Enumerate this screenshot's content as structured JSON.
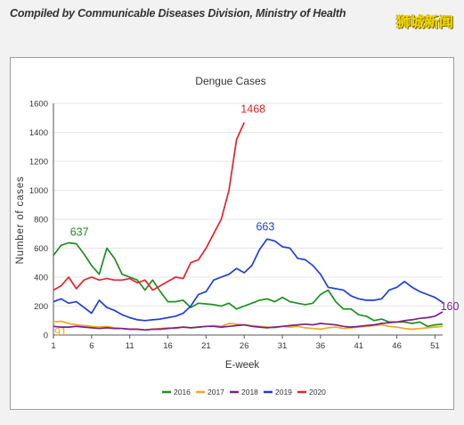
{
  "header": {
    "source_note": "Compiled by Communicable Diseases Division, Ministry of Health",
    "logo_text": "狮城新闻"
  },
  "colors": {
    "2016": "#1e8f1e",
    "2017": "#f5a623",
    "2018": "#7b1f8a",
    "2019": "#1f3fd6",
    "2020": "#e8222a",
    "grid": "#e6e6e6"
  },
  "chart_data": {
    "type": "line",
    "title": "Dengue Cases",
    "xlabel": "E-week",
    "ylabel": "Number of cases",
    "xlim": [
      1,
      52
    ],
    "ylim": [
      0,
      1600
    ],
    "x_ticks": [
      1,
      6,
      11,
      16,
      21,
      26,
      31,
      36,
      41,
      46,
      51
    ],
    "y_ticks": [
      0,
      200,
      400,
      600,
      800,
      1000,
      1200,
      1400,
      1600
    ],
    "grid": "horizontal",
    "legend_position": "bottom",
    "series": [
      {
        "name": "2016",
        "color_key": "2016",
        "values": [
          550,
          620,
          637,
          630,
          560,
          480,
          420,
          600,
          530,
          420,
          400,
          380,
          310,
          380,
          300,
          230,
          230,
          240,
          190,
          220,
          215,
          210,
          200,
          220,
          180,
          200,
          220,
          240,
          250,
          230,
          260,
          230,
          220,
          210,
          220,
          280,
          310,
          230,
          180,
          180,
          140,
          130,
          100,
          110,
          90,
          90,
          90,
          80,
          90,
          60,
          70,
          75
        ]
      },
      {
        "name": "2017",
        "color_key": "2017",
        "values": [
          91,
          95,
          80,
          70,
          65,
          60,
          55,
          60,
          50,
          45,
          40,
          40,
          35,
          40,
          45,
          50,
          45,
          55,
          50,
          55,
          60,
          65,
          60,
          80,
          75,
          70,
          65,
          60,
          55,
          50,
          60,
          55,
          60,
          50,
          45,
          40,
          50,
          55,
          45,
          50,
          55,
          60,
          65,
          70,
          60,
          55,
          45,
          40,
          45,
          50,
          55,
          60
        ]
      },
      {
        "name": "2018",
        "color_key": "2018",
        "values": [
          60,
          55,
          55,
          60,
          55,
          50,
          45,
          50,
          45,
          45,
          40,
          40,
          35,
          40,
          40,
          45,
          50,
          55,
          50,
          55,
          60,
          60,
          55,
          60,
          65,
          70,
          60,
          55,
          50,
          55,
          60,
          65,
          70,
          75,
          70,
          80,
          75,
          70,
          60,
          55,
          60,
          65,
          70,
          80,
          85,
          90,
          100,
          105,
          115,
          120,
          130,
          160
        ]
      },
      {
        "name": "2019",
        "color_key": "2019",
        "values": [
          230,
          250,
          220,
          230,
          190,
          150,
          240,
          190,
          170,
          140,
          120,
          105,
          100,
          105,
          110,
          120,
          130,
          150,
          200,
          280,
          300,
          380,
          400,
          420,
          460,
          430,
          480,
          590,
          663,
          650,
          610,
          600,
          530,
          520,
          480,
          420,
          330,
          320,
          310,
          270,
          250,
          240,
          240,
          250,
          310,
          330,
          370,
          330,
          300,
          280,
          260,
          225
        ]
      },
      {
        "name": "2020",
        "color_key": "2020",
        "values": [
          310,
          340,
          400,
          320,
          380,
          400,
          380,
          390,
          380,
          380,
          390,
          360,
          380,
          310,
          340,
          370,
          400,
          390,
          500,
          520,
          600,
          700,
          800,
          1000,
          1350,
          1468
        ]
      }
    ],
    "annotations": [
      {
        "text": "637",
        "x": 3,
        "y": 637,
        "color_key": "2016"
      },
      {
        "text": "91",
        "x": 1,
        "y": 91,
        "color_key": "2017"
      },
      {
        "text": "1468",
        "x": 26,
        "y": 1468,
        "color_key": "2020"
      },
      {
        "text": "663",
        "x": 29,
        "y": 663,
        "color_key": "2019"
      },
      {
        "text": "160",
        "x": 52,
        "y": 160,
        "color_key": "2018"
      }
    ]
  }
}
